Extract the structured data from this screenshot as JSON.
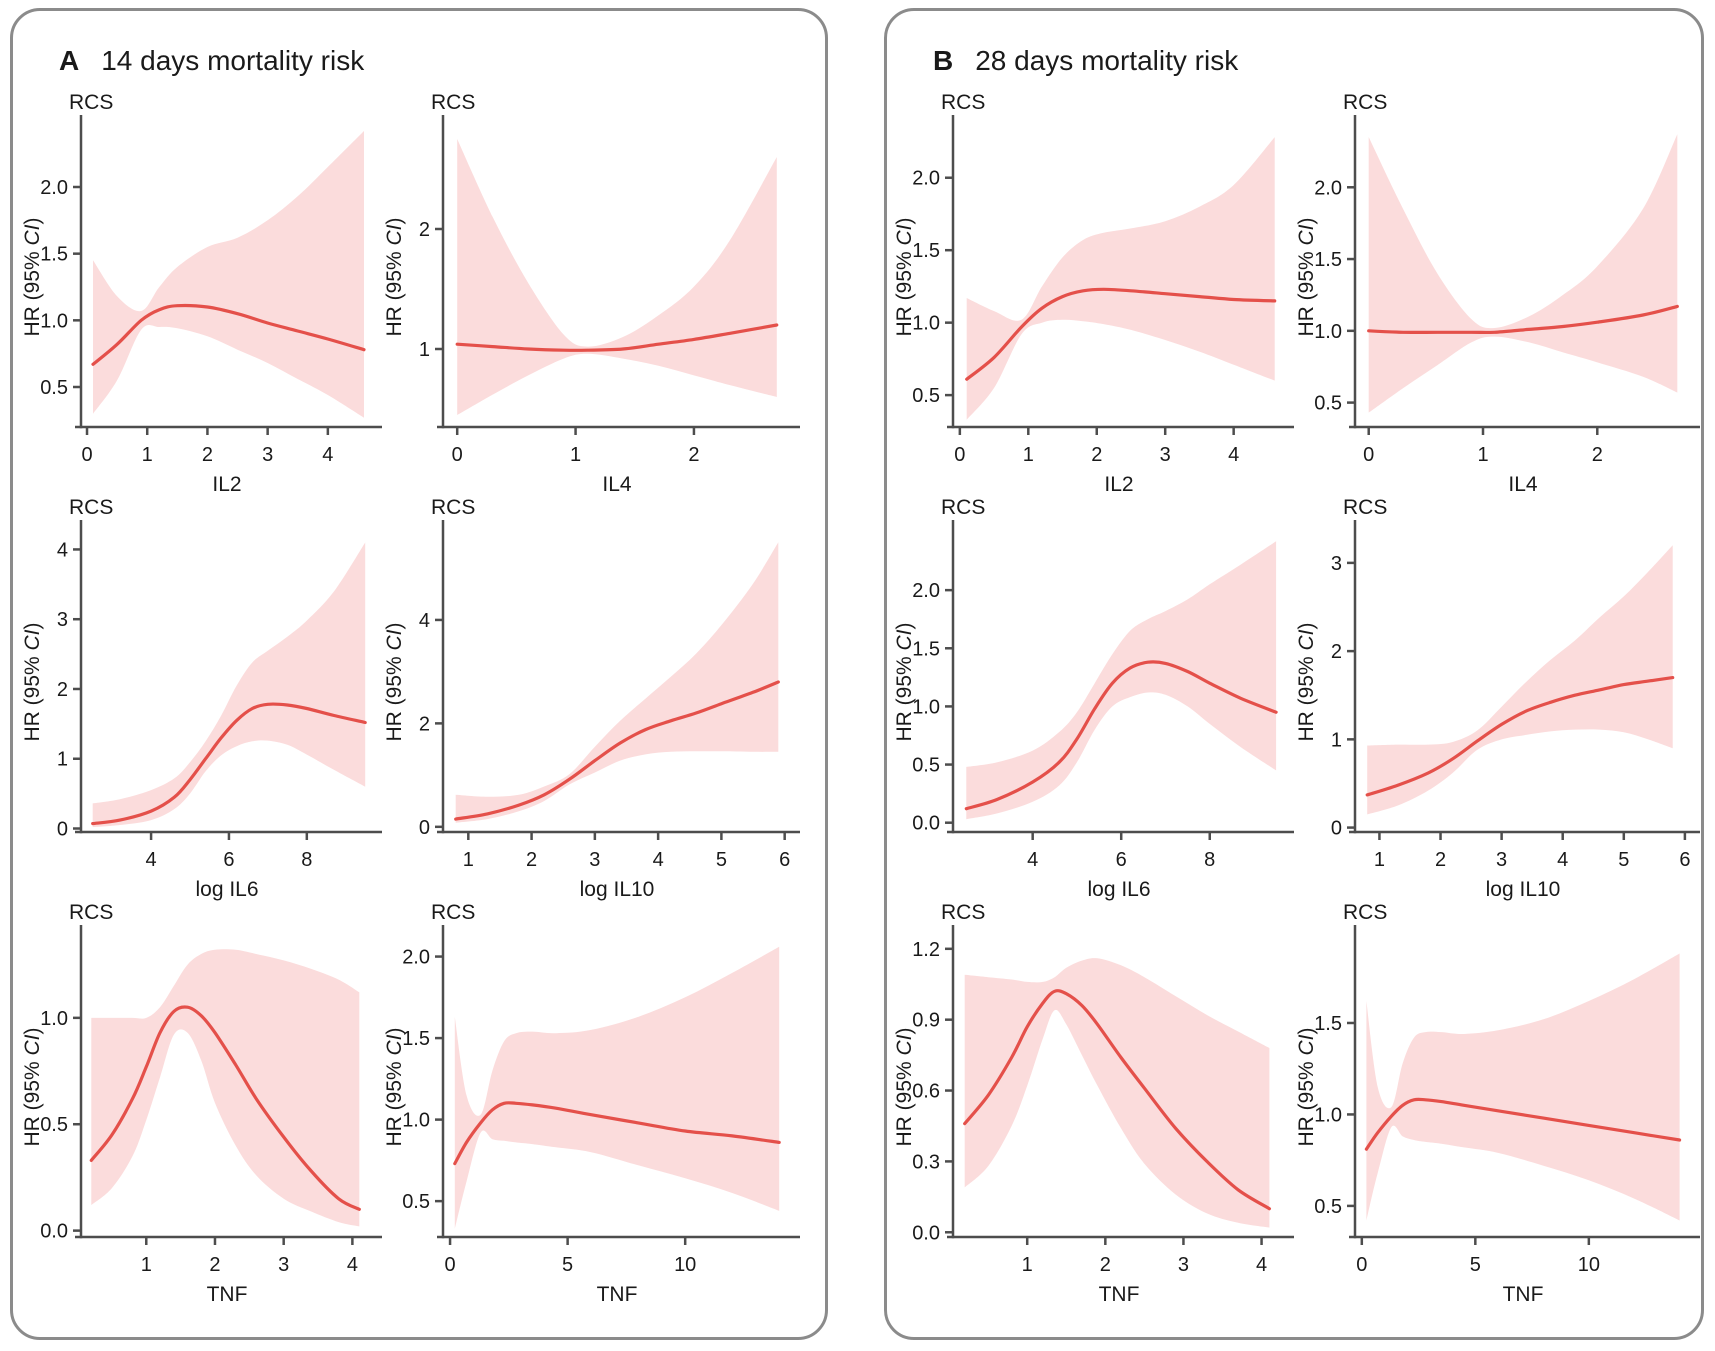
{
  "styles": {
    "line_color": "#e4504a",
    "band_color": "#fbdcdc",
    "axis_color": "#4d4d4d",
    "text_color": "#1a1a1a",
    "panel_border_color": "#8b8b8b"
  },
  "figure": {
    "panels": [
      {
        "label": "A",
        "title": "14 days mortality risk"
      },
      {
        "label": "B",
        "title": "28 days mortality risk"
      }
    ]
  },
  "chart_data": [
    {
      "type": "line",
      "panel": "A",
      "name": "il2",
      "corner_label": "RCS",
      "ylabel": "HR (95% CI)",
      "xlabel": "IL2",
      "xlim": [
        -0.1,
        4.75
      ],
      "ylim": [
        0.2,
        2.45
      ],
      "xticks": [
        0,
        1,
        2,
        3,
        4
      ],
      "xtick_labels": [
        "0",
        "1",
        "2",
        "3",
        "4"
      ],
      "yticks": [
        0.5,
        1,
        1.5,
        2
      ],
      "ytick_labels": [
        "0.5",
        "1.0",
        "1.5",
        "2.0"
      ],
      "x": [
        0.1,
        0.5,
        0.9,
        1.2,
        1.5,
        2.0,
        2.5,
        3.0,
        3.5,
        4.0,
        4.6
      ],
      "hr": [
        0.67,
        0.82,
        1.0,
        1.08,
        1.11,
        1.1,
        1.05,
        0.98,
        0.92,
        0.86,
        0.78
      ],
      "ci_lower": [
        0.3,
        0.55,
        0.93,
        0.95,
        0.94,
        0.88,
        0.78,
        0.68,
        0.56,
        0.44,
        0.27
      ],
      "ci_upper": [
        1.45,
        1.18,
        1.07,
        1.25,
        1.4,
        1.55,
        1.62,
        1.75,
        1.93,
        2.15,
        2.42
      ]
    },
    {
      "type": "line",
      "panel": "A",
      "name": "il4",
      "corner_label": "RCS",
      "ylabel": "HR (95% CI)",
      "xlabel": "IL4",
      "xlim": [
        -0.12,
        2.82
      ],
      "ylim": [
        0.35,
        2.85
      ],
      "xticks": [
        0,
        1,
        2
      ],
      "xtick_labels": [
        "0",
        "1",
        "2"
      ],
      "yticks": [
        1,
        2
      ],
      "ytick_labels": [
        "1",
        "2"
      ],
      "x": [
        0.0,
        0.3,
        0.6,
        0.9,
        1.1,
        1.4,
        1.7,
        2.0,
        2.3,
        2.7
      ],
      "hr": [
        1.04,
        1.02,
        1.0,
        0.99,
        0.99,
        1.0,
        1.04,
        1.08,
        1.13,
        1.2
      ],
      "ci_lower": [
        0.45,
        0.62,
        0.78,
        0.92,
        0.96,
        0.92,
        0.86,
        0.78,
        0.7,
        0.6
      ],
      "ci_upper": [
        2.75,
        2.1,
        1.55,
        1.12,
        1.02,
        1.1,
        1.28,
        1.52,
        1.9,
        2.6
      ]
    },
    {
      "type": "line",
      "panel": "A",
      "name": "log-il6",
      "corner_label": "RCS",
      "ylabel": "HR (95% CI)",
      "xlabel": "log IL6",
      "xlim": [
        2.2,
        9.7
      ],
      "ylim": [
        -0.05,
        4.25
      ],
      "xticks": [
        4,
        6,
        8
      ],
      "xtick_labels": [
        "4",
        "6",
        "8"
      ],
      "yticks": [
        0,
        1,
        2,
        3,
        4
      ],
      "ytick_labels": [
        "0",
        "1",
        "2",
        "3",
        "4"
      ],
      "x": [
        2.5,
        3.2,
        4.0,
        4.6,
        5.0,
        5.4,
        5.8,
        6.2,
        6.6,
        7.0,
        7.5,
        8.0,
        8.7,
        9.5
      ],
      "hr": [
        0.07,
        0.12,
        0.25,
        0.45,
        0.7,
        1.0,
        1.3,
        1.55,
        1.72,
        1.78,
        1.77,
        1.72,
        1.62,
        1.52
      ],
      "ci_lower": [
        0.02,
        0.05,
        0.12,
        0.28,
        0.5,
        0.82,
        1.05,
        1.18,
        1.25,
        1.26,
        1.2,
        1.06,
        0.84,
        0.6
      ],
      "ci_upper": [
        0.36,
        0.42,
        0.55,
        0.72,
        0.95,
        1.25,
        1.62,
        2.05,
        2.38,
        2.55,
        2.75,
        2.98,
        3.4,
        4.1
      ]
    },
    {
      "type": "line",
      "panel": "A",
      "name": "log-il10",
      "corner_label": "RCS",
      "ylabel": "HR (95% CI)",
      "xlabel": "log IL10",
      "xlim": [
        0.6,
        6.1
      ],
      "ylim": [
        -0.1,
        5.7
      ],
      "xticks": [
        1,
        2,
        3,
        4,
        5,
        6
      ],
      "xtick_labels": [
        "1",
        "2",
        "3",
        "4",
        "5",
        "6"
      ],
      "yticks": [
        0,
        2,
        4
      ],
      "ytick_labels": [
        "0",
        "2",
        "4"
      ],
      "x": [
        0.8,
        1.3,
        1.8,
        2.2,
        2.6,
        3.0,
        3.4,
        3.8,
        4.2,
        4.6,
        5.0,
        5.5,
        5.9
      ],
      "hr": [
        0.15,
        0.25,
        0.42,
        0.62,
        0.92,
        1.28,
        1.62,
        1.88,
        2.05,
        2.2,
        2.38,
        2.6,
        2.8
      ],
      "ci_lower": [
        0.08,
        0.15,
        0.3,
        0.5,
        0.82,
        1.05,
        1.28,
        1.4,
        1.45,
        1.46,
        1.46,
        1.45,
        1.45
      ],
      "ci_upper": [
        0.62,
        0.58,
        0.62,
        0.78,
        1.02,
        1.55,
        2.05,
        2.48,
        2.9,
        3.35,
        3.9,
        4.7,
        5.5
      ]
    },
    {
      "type": "line",
      "panel": "A",
      "name": "tnf-a",
      "corner_label": "RCS",
      "ylabel": "HR (95% CI)",
      "xlabel": "TNF",
      "xlim": [
        0.05,
        4.3
      ],
      "ylim": [
        -0.03,
        1.38
      ],
      "xticks": [
        1,
        2,
        3,
        4
      ],
      "xtick_labels": [
        "1",
        "2",
        "3",
        "4"
      ],
      "yticks": [
        0,
        0.5,
        1
      ],
      "ytick_labels": [
        "0.0",
        "0.5",
        "1.0"
      ],
      "x": [
        0.2,
        0.5,
        0.8,
        1.0,
        1.2,
        1.4,
        1.6,
        1.8,
        2.0,
        2.3,
        2.6,
        3.0,
        3.4,
        3.8,
        4.1
      ],
      "hr": [
        0.33,
        0.45,
        0.62,
        0.77,
        0.93,
        1.03,
        1.05,
        1.01,
        0.93,
        0.78,
        0.62,
        0.44,
        0.28,
        0.15,
        0.1
      ],
      "ci_lower": [
        0.12,
        0.2,
        0.35,
        0.52,
        0.72,
        0.92,
        0.93,
        0.8,
        0.6,
        0.4,
        0.26,
        0.15,
        0.09,
        0.04,
        0.02
      ],
      "ci_upper": [
        1.0,
        1.0,
        1.0,
        1.0,
        1.05,
        1.15,
        1.25,
        1.3,
        1.32,
        1.32,
        1.3,
        1.27,
        1.23,
        1.18,
        1.12
      ]
    },
    {
      "type": "line",
      "panel": "A",
      "name": "tnf-b",
      "corner_label": "RCS",
      "ylabel": "HR (95% CI)",
      "xlabel": "TNF",
      "xlim": [
        -0.3,
        14.5
      ],
      "ylim": [
        0.28,
        2.12
      ],
      "xticks": [
        0,
        5,
        10
      ],
      "xtick_labels": [
        "0",
        "5",
        "10"
      ],
      "yticks": [
        0.5,
        1,
        1.5,
        2
      ],
      "ytick_labels": [
        "0.5",
        "1.0",
        "1.5",
        "2.0"
      ],
      "x": [
        0.2,
        0.7,
        1.3,
        1.8,
        2.3,
        2.8,
        3.5,
        4.5,
        6.0,
        8.0,
        10.0,
        12.0,
        14.0
      ],
      "hr": [
        0.73,
        0.86,
        0.98,
        1.06,
        1.1,
        1.1,
        1.09,
        1.07,
        1.03,
        0.98,
        0.93,
        0.9,
        0.86
      ],
      "ci_lower": [
        0.33,
        0.62,
        0.92,
        0.88,
        0.87,
        0.86,
        0.85,
        0.83,
        0.8,
        0.72,
        0.64,
        0.55,
        0.44
      ],
      "ci_upper": [
        1.63,
        1.15,
        1.03,
        1.3,
        1.48,
        1.53,
        1.54,
        1.53,
        1.55,
        1.63,
        1.75,
        1.9,
        2.06
      ]
    },
    {
      "type": "line",
      "panel": "B",
      "name": "il2",
      "corner_label": "RCS",
      "ylabel": "HR (95% CI)",
      "xlabel": "IL2",
      "xlim": [
        -0.1,
        4.75
      ],
      "ylim": [
        0.28,
        2.35
      ],
      "xticks": [
        0,
        1,
        2,
        3,
        4
      ],
      "xtick_labels": [
        "0",
        "1",
        "2",
        "3",
        "4"
      ],
      "yticks": [
        0.5,
        1,
        1.5,
        2
      ],
      "ytick_labels": [
        "0.5",
        "1.0",
        "1.5",
        "2.0"
      ],
      "x": [
        0.1,
        0.5,
        0.9,
        1.2,
        1.5,
        1.8,
        2.1,
        2.5,
        3.0,
        3.5,
        4.0,
        4.6
      ],
      "hr": [
        0.61,
        0.76,
        0.97,
        1.1,
        1.18,
        1.22,
        1.23,
        1.22,
        1.2,
        1.18,
        1.16,
        1.15
      ],
      "ci_lower": [
        0.33,
        0.55,
        0.92,
        1.0,
        1.02,
        1.01,
        0.99,
        0.95,
        0.88,
        0.8,
        0.71,
        0.6
      ],
      "ci_upper": [
        1.17,
        1.08,
        1.02,
        1.25,
        1.45,
        1.57,
        1.62,
        1.65,
        1.7,
        1.8,
        1.95,
        2.28
      ]
    },
    {
      "type": "line",
      "panel": "B",
      "name": "il4",
      "corner_label": "RCS",
      "ylabel": "HR (95% CI)",
      "xlabel": "IL4",
      "xlim": [
        -0.12,
        2.82
      ],
      "ylim": [
        0.33,
        2.42
      ],
      "xticks": [
        0,
        1,
        2
      ],
      "xtick_labels": [
        "0",
        "1",
        "2"
      ],
      "yticks": [
        0.5,
        1,
        1.5,
        2
      ],
      "ytick_labels": [
        "0.5",
        "1.0",
        "1.5",
        "2.0"
      ],
      "x": [
        0.0,
        0.3,
        0.6,
        0.9,
        1.1,
        1.4,
        1.7,
        2.0,
        2.4,
        2.7
      ],
      "hr": [
        1.0,
        0.99,
        0.99,
        0.99,
        0.99,
        1.01,
        1.03,
        1.06,
        1.11,
        1.17
      ],
      "ci_lower": [
        0.43,
        0.6,
        0.76,
        0.92,
        0.96,
        0.92,
        0.85,
        0.78,
        0.68,
        0.57
      ],
      "ci_upper": [
        2.35,
        1.85,
        1.4,
        1.08,
        1.02,
        1.1,
        1.25,
        1.45,
        1.85,
        2.37
      ]
    },
    {
      "type": "line",
      "panel": "B",
      "name": "log-il6",
      "corner_label": "RCS",
      "ylabel": "HR (95% CI)",
      "xlabel": "log IL6",
      "xlim": [
        2.2,
        9.7
      ],
      "ylim": [
        -0.08,
        2.5
      ],
      "xticks": [
        4,
        6,
        8
      ],
      "xtick_labels": [
        "4",
        "6",
        "8"
      ],
      "yticks": [
        0,
        0.5,
        1,
        1.5,
        2
      ],
      "ytick_labels": [
        "0.0",
        "0.5",
        "1.0",
        "1.5",
        "2.0"
      ],
      "x": [
        2.5,
        3.2,
        4.0,
        4.6,
        5.0,
        5.4,
        5.8,
        6.2,
        6.6,
        7.0,
        7.5,
        8.0,
        8.7,
        9.5
      ],
      "hr": [
        0.12,
        0.2,
        0.35,
        0.52,
        0.72,
        0.98,
        1.2,
        1.33,
        1.38,
        1.37,
        1.3,
        1.2,
        1.07,
        0.95
      ],
      "ci_lower": [
        0.03,
        0.08,
        0.18,
        0.32,
        0.52,
        0.8,
        1.0,
        1.08,
        1.12,
        1.1,
        1.0,
        0.85,
        0.65,
        0.45
      ],
      "ci_upper": [
        0.48,
        0.52,
        0.62,
        0.78,
        0.95,
        1.2,
        1.45,
        1.65,
        1.75,
        1.82,
        1.92,
        2.05,
        2.22,
        2.42
      ]
    },
    {
      "type": "line",
      "panel": "B",
      "name": "log-il10",
      "corner_label": "RCS",
      "ylabel": "HR (95% CI)",
      "xlabel": "log IL10",
      "xlim": [
        0.6,
        6.1
      ],
      "ylim": [
        -0.05,
        3.35
      ],
      "xticks": [
        1,
        2,
        3,
        4,
        5,
        6
      ],
      "xtick_labels": [
        "1",
        "2",
        "3",
        "4",
        "5",
        "6"
      ],
      "yticks": [
        0,
        1,
        2,
        3
      ],
      "ytick_labels": [
        "0",
        "1",
        "2",
        "3"
      ],
      "x": [
        0.8,
        1.3,
        1.8,
        2.2,
        2.6,
        3.0,
        3.4,
        3.8,
        4.2,
        4.6,
        5.0,
        5.4,
        5.8
      ],
      "hr": [
        0.37,
        0.48,
        0.62,
        0.78,
        0.98,
        1.17,
        1.32,
        1.42,
        1.5,
        1.56,
        1.62,
        1.66,
        1.7
      ],
      "ci_lower": [
        0.15,
        0.25,
        0.42,
        0.62,
        0.88,
        1.0,
        1.05,
        1.09,
        1.11,
        1.11,
        1.08,
        1.0,
        0.9
      ],
      "ci_upper": [
        0.93,
        0.94,
        0.94,
        0.97,
        1.1,
        1.37,
        1.65,
        1.9,
        2.12,
        2.38,
        2.62,
        2.9,
        3.2
      ]
    },
    {
      "type": "line",
      "panel": "B",
      "name": "tnf-a",
      "corner_label": "RCS",
      "ylabel": "HR (95% CI)",
      "xlabel": "TNF",
      "xlim": [
        0.05,
        4.3
      ],
      "ylim": [
        -0.02,
        1.25
      ],
      "xticks": [
        1,
        2,
        3,
        4
      ],
      "xtick_labels": [
        "1",
        "2",
        "3",
        "4"
      ],
      "yticks": [
        0,
        0.3,
        0.6,
        0.9,
        1.2
      ],
      "ytick_labels": [
        "0.0",
        "0.3",
        "0.6",
        "0.9",
        "1.2"
      ],
      "x": [
        0.2,
        0.5,
        0.8,
        1.0,
        1.2,
        1.35,
        1.5,
        1.7,
        1.9,
        2.2,
        2.5,
        2.9,
        3.3,
        3.7,
        4.1
      ],
      "hr": [
        0.46,
        0.58,
        0.74,
        0.87,
        0.97,
        1.02,
        1.01,
        0.96,
        0.88,
        0.74,
        0.61,
        0.44,
        0.3,
        0.18,
        0.1
      ],
      "ci_lower": [
        0.19,
        0.28,
        0.45,
        0.62,
        0.82,
        0.94,
        0.88,
        0.75,
        0.62,
        0.44,
        0.29,
        0.16,
        0.08,
        0.04,
        0.02
      ],
      "ci_upper": [
        1.09,
        1.08,
        1.07,
        1.06,
        1.06,
        1.08,
        1.12,
        1.15,
        1.16,
        1.13,
        1.08,
        1.0,
        0.92,
        0.85,
        0.78
      ]
    },
    {
      "type": "line",
      "panel": "B",
      "name": "tnf-b",
      "corner_label": "RCS",
      "ylabel": "HR (95% CI)",
      "xlabel": "TNF",
      "xlim": [
        -0.3,
        14.5
      ],
      "ylim": [
        0.33,
        1.97
      ],
      "xticks": [
        0,
        5,
        10
      ],
      "xtick_labels": [
        "0",
        "5",
        "10"
      ],
      "yticks": [
        0.5,
        1,
        1.5
      ],
      "ytick_labels": [
        "0.5",
        "1.0",
        "1.5"
      ],
      "x": [
        0.2,
        0.7,
        1.3,
        1.8,
        2.3,
        2.8,
        3.5,
        4.5,
        6.0,
        8.0,
        10.0,
        12.0,
        14.0
      ],
      "hr": [
        0.81,
        0.9,
        0.99,
        1.05,
        1.08,
        1.08,
        1.07,
        1.05,
        1.02,
        0.98,
        0.94,
        0.9,
        0.86
      ],
      "ci_lower": [
        0.42,
        0.68,
        0.93,
        0.88,
        0.86,
        0.85,
        0.84,
        0.82,
        0.79,
        0.72,
        0.64,
        0.54,
        0.42
      ],
      "ci_upper": [
        1.62,
        1.15,
        1.04,
        1.28,
        1.42,
        1.45,
        1.45,
        1.44,
        1.46,
        1.52,
        1.62,
        1.74,
        1.88
      ]
    }
  ]
}
